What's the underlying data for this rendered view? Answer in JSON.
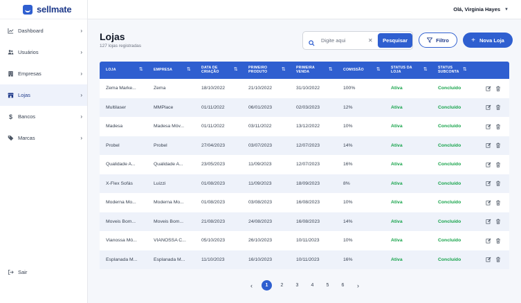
{
  "brand": {
    "name": "sellmate"
  },
  "user": {
    "greeting": "Olá, Virginia Hayes"
  },
  "sidebar": {
    "items": [
      {
        "label": "Dashboard",
        "icon": "chart-line-icon"
      },
      {
        "label": "Usuários",
        "icon": "users-icon"
      },
      {
        "label": "Empresas",
        "icon": "building-icon"
      },
      {
        "label": "Lojas",
        "icon": "store-icon",
        "active": true
      },
      {
        "label": "Bancos",
        "icon": "dollar-icon"
      },
      {
        "label": "Marcas",
        "icon": "tag-icon"
      }
    ],
    "logout": "Sair"
  },
  "page": {
    "title": "Lojas",
    "subtitle": "127 lojas registradas"
  },
  "search": {
    "placeholder": "Digite aqui",
    "button": "Pesquisar"
  },
  "toolbar": {
    "filter": "Filtro",
    "new": "Nova Loja"
  },
  "table": {
    "headers": [
      {
        "line1": "LOJA",
        "line2": ""
      },
      {
        "line1": "EMPRESA",
        "line2": ""
      },
      {
        "line1": "DATA DE",
        "line2": "CRIAÇÃO"
      },
      {
        "line1": "PRIMEIRO",
        "line2": "PRODUTO"
      },
      {
        "line1": "PRIMEIRA",
        "line2": "VENDA"
      },
      {
        "line1": "COMISSÃO",
        "line2": ""
      },
      {
        "line1": "STATUS DA LOJA",
        "line2": ""
      },
      {
        "line1": "STATUS",
        "line2": "SUBCONTA"
      }
    ],
    "rows": [
      [
        "Zema Marke...",
        "Zema",
        "18/10/2022",
        "21/10/2022",
        "31/10/2022",
        "100%",
        "Ativa",
        "Concluído"
      ],
      [
        "Multilaser",
        "MMPlace",
        "01/11/2022",
        "06/01/2023",
        "02/03/2023",
        "12%",
        "Ativa",
        "Concluído"
      ],
      [
        "Madesa",
        "Madesa Móv...",
        "01/11/2022",
        "03/11/2022",
        "13/12/2022",
        "10%",
        "Ativa",
        "Concluído"
      ],
      [
        "Probel",
        "Probel",
        "27/04/2023",
        "03/07/2023",
        "12/07/2023",
        "14%",
        "Ativa",
        "Concluído"
      ],
      [
        "Qualidade A...",
        "Qualidade A...",
        "23/05/2023",
        "11/09/2023",
        "12/07/2023",
        "16%",
        "Ativa",
        "Concluído"
      ],
      [
        "X-Flex Sofás",
        "Luizzi",
        "01/08/2023",
        "11/09/2023",
        "18/09/2023",
        "8%",
        "Ativa",
        "Concluído"
      ],
      [
        "Moderna Mo...",
        "Moderna Mo...",
        "01/08/2023",
        "03/08/2023",
        "16/08/2023",
        "10%",
        "Ativa",
        "Concluído"
      ],
      [
        "Moveis Bom...",
        "Moveis Bom...",
        "21/08/2023",
        "24/08/2023",
        "16/08/2023",
        "14%",
        "Ativa",
        "Concluído"
      ],
      [
        "Vianossa Mó...",
        "VIANOSSA C...",
        "05/10/2023",
        "26/10/2023",
        "10/11/2023",
        "10%",
        "Ativa",
        "Concluído"
      ],
      [
        "Esplanada M...",
        "Esplanada M...",
        "11/10/2023",
        "16/10/2023",
        "10/11/2023",
        "16%",
        "Ativa",
        "Concluído"
      ]
    ]
  },
  "pagination": {
    "pages": [
      "1",
      "2",
      "3",
      "4",
      "5",
      "6"
    ],
    "current": "1"
  },
  "colors": {
    "accent": "#2f5fd0",
    "status": "#16a34a"
  }
}
